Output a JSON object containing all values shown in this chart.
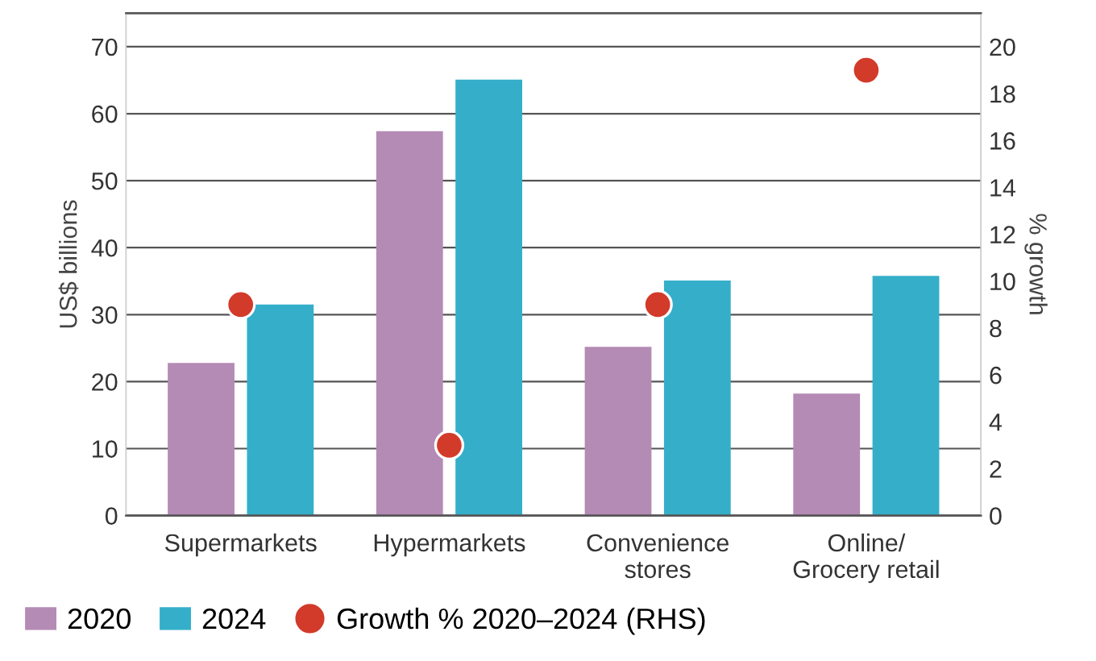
{
  "chart_data": {
    "type": "bar",
    "categories": [
      "Supermarkets",
      "Hypermarkets",
      "Convenience\nstores",
      "Online/\nGrocery retail"
    ],
    "series": [
      {
        "name": "2020",
        "color": "#b48bb5",
        "values": [
          22.8,
          57.4,
          25.2,
          18.2
        ]
      },
      {
        "name": "2024",
        "color": "#35afc9",
        "values": [
          31.5,
          65.1,
          35.1,
          35.8
        ]
      },
      {
        "name": "Growth % 2020–2024 (RHS)",
        "type": "scatter",
        "axis": "y2",
        "color": "#d23a2a",
        "values": [
          9,
          3,
          9,
          19
        ]
      }
    ],
    "ylabel": "US$ billions",
    "y2label": "% growth",
    "ylim": [
      0,
      75
    ],
    "yticks": [
      0,
      10,
      20,
      30,
      40,
      50,
      60,
      70
    ],
    "y2lim": [
      0,
      21.43
    ],
    "y2ticks": [
      0,
      2,
      4,
      6,
      8,
      10,
      12,
      14,
      16,
      18,
      20
    ],
    "grid": "y",
    "legend": "bottom left",
    "marker": "circle"
  }
}
